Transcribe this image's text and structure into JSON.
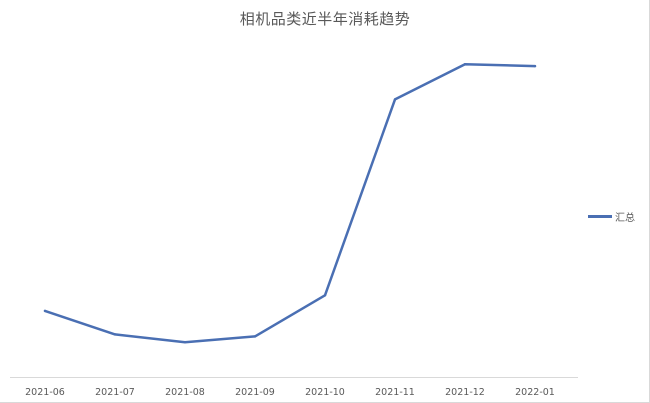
{
  "chart_data": {
    "type": "line",
    "title": "相机品类近半年消耗趋势",
    "xlabel": "",
    "ylabel": "",
    "categories": [
      "2021-06",
      "2021-07",
      "2021-08",
      "2021-09",
      "2021-10",
      "2021-11",
      "2021-12",
      "2022-01"
    ],
    "series": [
      {
        "name": "汇总",
        "values": [
          12,
          6,
          4,
          5.5,
          16,
          66,
          75,
          74.5
        ]
      }
    ],
    "ylim": [
      -5,
      85
    ],
    "grid": false,
    "legend_position": "right",
    "colors": {
      "series": "#4a6fb3",
      "axis": "#d9d9d9",
      "text": "#595959"
    }
  }
}
